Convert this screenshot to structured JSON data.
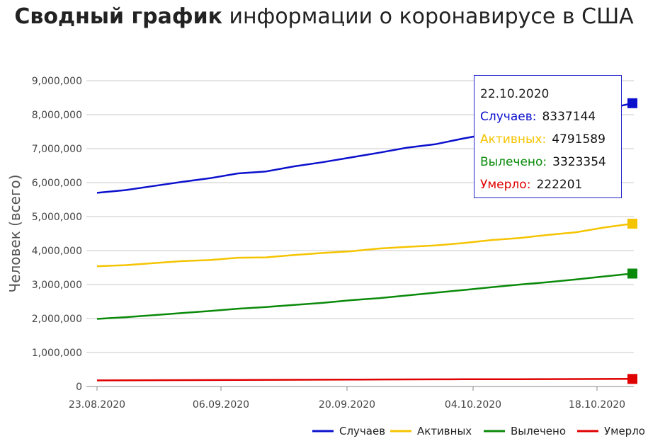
{
  "chart_data": {
    "type": "line",
    "title_bold": "Сводный график",
    "title_rest": " информации о коронавирусе в США",
    "ylabel": "Человек (всего)",
    "xlabel": "",
    "ylim": [
      0,
      9000000
    ],
    "yticks": [
      {
        "value": 0,
        "label": "0"
      },
      {
        "value": 1000000,
        "label": "1,000,000"
      },
      {
        "value": 2000000,
        "label": "2,000,000"
      },
      {
        "value": 3000000,
        "label": "3,000,000"
      },
      {
        "value": 4000000,
        "label": "4,000,000"
      },
      {
        "value": 5000000,
        "label": "5,000,000"
      },
      {
        "value": 6000000,
        "label": "6,000,000"
      },
      {
        "value": 7000000,
        "label": "7,000,000"
      },
      {
        "value": 8000000,
        "label": "8,000,000"
      },
      {
        "value": 9000000,
        "label": "9,000,000"
      }
    ],
    "xticks": [
      "23.08.2020",
      "06.09.2020",
      "20.09.2020",
      "04.10.2020",
      "18.10.2020"
    ],
    "x_start": "23.08.2020",
    "x_end": "22.10.2020",
    "grid": true,
    "legend_position": "bottom-right",
    "series": [
      {
        "name": "Случаев",
        "color": "#0b10cc",
        "values": [
          5700000,
          5780000,
          5900000,
          6020000,
          6130000,
          6270000,
          6330000,
          6480000,
          6600000,
          6740000,
          6880000,
          7030000,
          7130000,
          7300000,
          7450000,
          7620000,
          7800000,
          8000000,
          8150000,
          8337144
        ]
      },
      {
        "name": "Активных",
        "color": "#f5c400",
        "values": [
          3540000,
          3570000,
          3630000,
          3690000,
          3720000,
          3790000,
          3800000,
          3870000,
          3930000,
          3980000,
          4060000,
          4110000,
          4150000,
          4220000,
          4310000,
          4370000,
          4460000,
          4540000,
          4680000,
          4791589
        ]
      },
      {
        "name": "Вылечено",
        "color": "#0a8a0a",
        "values": [
          1990000,
          2040000,
          2100000,
          2160000,
          2220000,
          2290000,
          2340000,
          2400000,
          2460000,
          2540000,
          2600000,
          2680000,
          2760000,
          2840000,
          2920000,
          3000000,
          3070000,
          3150000,
          3240000,
          3323354
        ]
      },
      {
        "name": "Умерло",
        "color": "#e00000",
        "values": [
          180000,
          182500,
          185000,
          188000,
          190500,
          193000,
          195500,
          198000,
          200500,
          203000,
          205500,
          207500,
          209500,
          211500,
          213500,
          215500,
          217000,
          219000,
          220500,
          222201
        ]
      }
    ]
  },
  "tooltip": {
    "date": "22.10.2020",
    "rows": [
      {
        "label": "Случаев:",
        "value": "8337144",
        "color": "#0b10cc"
      },
      {
        "label": "Активных:",
        "value": "4791589",
        "color": "#f5c400"
      },
      {
        "label": "Вылечено:",
        "value": "3323354",
        "color": "#0a8a0a"
      },
      {
        "label": "Умерло:",
        "value": "222201",
        "color": "#e00000"
      }
    ]
  }
}
